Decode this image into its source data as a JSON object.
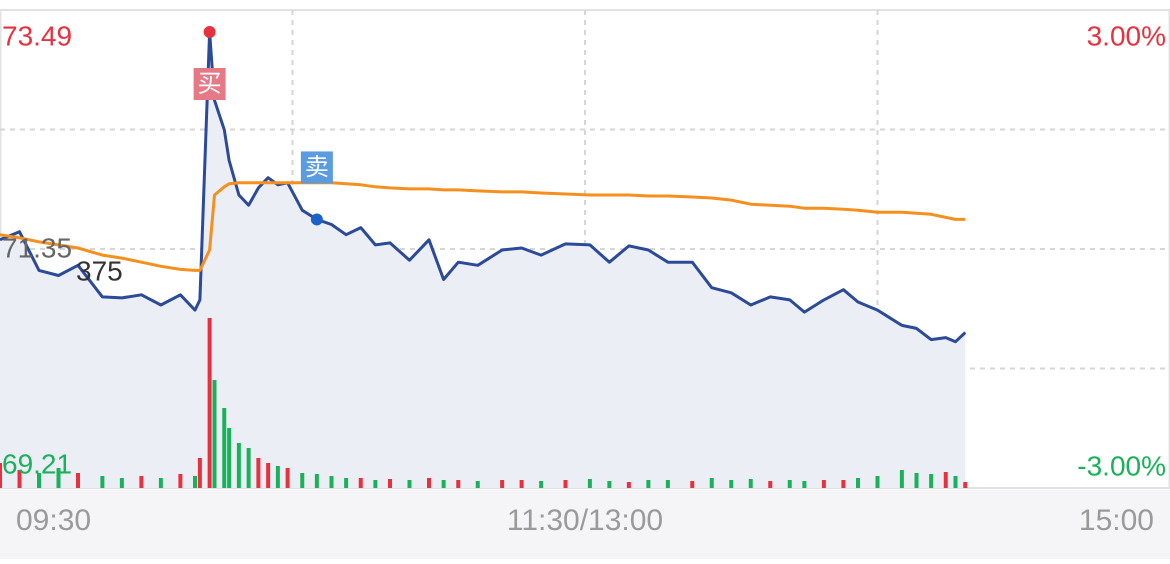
{
  "chart_data": {
    "type": "line",
    "x": [
      0,
      4,
      8,
      12,
      16,
      21,
      25,
      29,
      33,
      37,
      40,
      41,
      43,
      44,
      46,
      47,
      49,
      51,
      53,
      55,
      57,
      59,
      62,
      65,
      68,
      71,
      74,
      77,
      80,
      84,
      88,
      91,
      94,
      98,
      103,
      107,
      111,
      116,
      121,
      125,
      129,
      133,
      137,
      142,
      146,
      150,
      154,
      158,
      162,
      165,
      169,
      173,
      176,
      180,
      185,
      188,
      191,
      194,
      196,
      198
    ],
    "series": [
      {
        "color": "#2b4a9a",
        "values": [
          71.45,
          71.53,
          71.15,
          71.1,
          71.2,
          70.89,
          70.88,
          70.91,
          70.81,
          70.91,
          70.76,
          70.86,
          73.49,
          72.82,
          72.53,
          72.23,
          71.89,
          71.79,
          71.96,
          72.06,
          71.99,
          72.01,
          71.74,
          71.65,
          71.6,
          71.5,
          71.57,
          71.4,
          71.42,
          71.25,
          71.45,
          71.06,
          71.23,
          71.2,
          71.35,
          71.37,
          71.3,
          71.41,
          71.4,
          71.23,
          71.39,
          71.35,
          71.23,
          71.23,
          70.98,
          70.93,
          70.81,
          70.89,
          70.86,
          70.74,
          70.86,
          70.96,
          70.84,
          70.76,
          70.61,
          70.58,
          70.47,
          70.49,
          70.45,
          70.54
        ]
      },
      {
        "color": "#f5901e",
        "values": [
          71.5,
          71.47,
          71.43,
          71.4,
          71.37,
          71.3,
          71.27,
          71.23,
          71.19,
          71.16,
          71.15,
          71.15,
          71.35,
          71.89,
          71.97,
          72.0,
          72.01,
          72.01,
          72.01,
          72.01,
          72.01,
          72.01,
          72.01,
          72.01,
          72.01,
          72.0,
          71.99,
          71.97,
          71.96,
          71.95,
          71.95,
          71.94,
          71.94,
          71.93,
          71.92,
          71.92,
          71.91,
          71.9,
          71.89,
          71.89,
          71.89,
          71.88,
          71.88,
          71.87,
          71.86,
          71.84,
          71.8,
          71.79,
          71.78,
          71.76,
          71.76,
          71.75,
          71.74,
          71.72,
          71.72,
          71.71,
          71.7,
          71.67,
          71.65,
          71.65
        ]
      }
    ],
    "volume": [
      25,
      18,
      15,
      20,
      15,
      12,
      10,
      12,
      10,
      14,
      12,
      30,
      170,
      108,
      80,
      60,
      45,
      40,
      30,
      25,
      22,
      20,
      15,
      14,
      12,
      10,
      10,
      8,
      9,
      8,
      10,
      8,
      8,
      7,
      8,
      8,
      7,
      8,
      9,
      7,
      6,
      8,
      8,
      7,
      10,
      8,
      9,
      7,
      8,
      7,
      8,
      8,
      10,
      12,
      18,
      15,
      14,
      16,
      12,
      6
    ],
    "vlim": [
      0,
      200
    ],
    "up_color": "#e8313f",
    "down_color": "#19b25a",
    "fill": "#eceef6",
    "xlim": [
      0,
      240
    ],
    "xticks": [
      {
        "value": 0,
        "label": "09:30"
      },
      {
        "value": 120,
        "label": "11:30/13:00"
      },
      {
        "value": 240,
        "label": "15:00"
      }
    ],
    "ylim": [
      69.21,
      73.49
    ],
    "yticks": [
      73.49,
      71.35,
      69.21
    ],
    "y2lim": [
      -3,
      3
    ],
    "y2ticks": [
      {
        "value": 3,
        "label": "3.00%"
      },
      {
        "value": -3,
        "label": "-3.00%"
      }
    ],
    "markers": [
      {
        "label": "买",
        "x": 43,
        "y": 73.49,
        "color": "#e8313f",
        "box": "#e57a86"
      },
      {
        "label": "卖",
        "x": 65,
        "y": 71.65,
        "color": "#1e62c8",
        "box": "#5b9be0"
      }
    ],
    "annotations": [
      "375"
    ],
    "grid": true
  }
}
